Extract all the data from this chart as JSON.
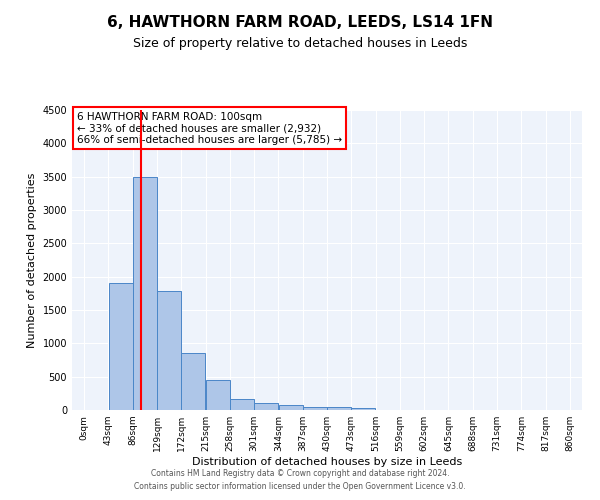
{
  "title1": "6, HAWTHORN FARM ROAD, LEEDS, LS14 1FN",
  "title2": "Size of property relative to detached houses in Leeds",
  "xlabel": "Distribution of detached houses by size in Leeds",
  "ylabel": "Number of detached properties",
  "bar_values": [
    0,
    1900,
    3500,
    1780,
    850,
    450,
    160,
    100,
    70,
    50,
    40,
    25,
    0,
    0,
    0,
    0,
    0,
    0,
    0,
    0
  ],
  "bin_edges": [
    0,
    43,
    86,
    129,
    172,
    215,
    258,
    301,
    344,
    387,
    430,
    473,
    516,
    559,
    602,
    645,
    688,
    731,
    774,
    817,
    860
  ],
  "bar_color": "#aec6e8",
  "bar_edge_color": "#4a86c8",
  "red_line_x": 100,
  "ylim": [
    0,
    4500
  ],
  "annotation_text": "6 HAWTHORN FARM ROAD: 100sqm\n← 33% of detached houses are smaller (2,932)\n66% of semi-detached houses are larger (5,785) →",
  "annotation_box_color": "white",
  "annotation_box_edge_color": "red",
  "footnote1": "Contains HM Land Registry data © Crown copyright and database right 2024.",
  "footnote2": "Contains public sector information licensed under the Open Government Licence v3.0.",
  "background_color": "#eef3fb",
  "grid_color": "white",
  "title1_fontsize": 11,
  "title2_fontsize": 9,
  "ylabel_fontsize": 8,
  "xlabel_fontsize": 8,
  "tick_fontsize": 6.5,
  "annotation_fontsize": 7.5,
  "footnote_fontsize": 5.5,
  "tick_labels": [
    "0sqm",
    "43sqm",
    "86sqm",
    "129sqm",
    "172sqm",
    "215sqm",
    "258sqm",
    "301sqm",
    "344sqm",
    "387sqm",
    "430sqm",
    "473sqm",
    "516sqm",
    "559sqm",
    "602sqm",
    "645sqm",
    "688sqm",
    "731sqm",
    "774sqm",
    "817sqm",
    "860sqm"
  ]
}
